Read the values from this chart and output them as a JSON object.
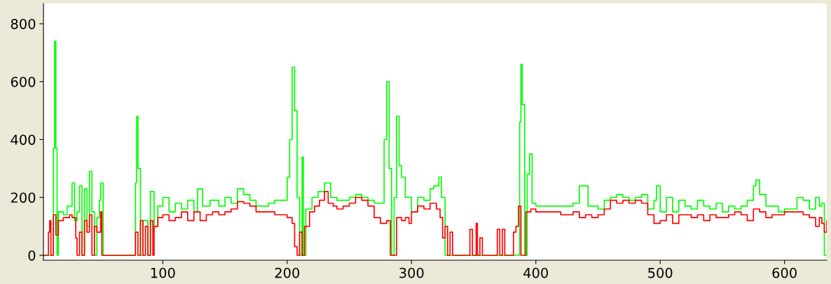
{
  "chart_data": {
    "type": "step",
    "xlim": [
      4,
      634
    ],
    "ylim": [
      -17,
      870
    ],
    "xticks": [
      100,
      200,
      300,
      400,
      500,
      600
    ],
    "yticks": [
      0,
      200,
      400,
      600,
      800
    ],
    "grid": false,
    "legend": false,
    "series": [
      {
        "color": "#00ff00",
        "x": [
          4,
          10,
          12,
          13,
          14,
          15,
          16,
          20,
          23,
          27,
          29,
          31,
          33,
          35,
          37,
          39,
          41,
          43,
          45,
          47,
          49,
          50,
          52,
          55,
          75,
          78,
          79,
          80,
          82,
          84,
          88,
          90,
          93,
          96,
          100,
          105,
          110,
          115,
          120,
          125,
          128,
          132,
          138,
          145,
          150,
          155,
          160,
          165,
          170,
          175,
          180,
          185,
          190,
          195,
          200,
          202,
          204,
          206,
          208,
          210,
          212,
          213,
          215,
          220,
          225,
          230,
          235,
          240,
          245,
          250,
          255,
          260,
          265,
          270,
          275,
          278,
          280,
          282,
          284,
          286,
          288,
          290,
          292,
          295,
          300,
          305,
          310,
          315,
          318,
          322,
          324,
          327,
          340,
          385,
          387,
          388,
          389,
          391,
          393,
          395,
          397,
          400,
          410,
          420,
          430,
          435,
          438,
          442,
          450,
          455,
          460,
          465,
          470,
          475,
          480,
          485,
          490,
          495,
          497,
          500,
          505,
          510,
          515,
          520,
          525,
          530,
          535,
          540,
          545,
          550,
          555,
          560,
          565,
          570,
          575,
          577,
          580,
          585,
          590,
          595,
          600,
          605,
          610,
          615,
          620,
          625,
          628,
          630,
          632,
          634
        ],
        "values": [
          0,
          0,
          370,
          740,
          370,
          0,
          150,
          140,
          170,
          250,
          120,
          150,
          240,
          0,
          230,
          100,
          290,
          150,
          0,
          130,
          190,
          250,
          0,
          0,
          0,
          250,
          480,
          300,
          0,
          120,
          0,
          220,
          100,
          170,
          200,
          150,
          180,
          160,
          190,
          150,
          230,
          170,
          190,
          170,
          200,
          180,
          230,
          210,
          190,
          170,
          170,
          180,
          190,
          190,
          270,
          400,
          650,
          500,
          200,
          0,
          340,
          0,
          160,
          200,
          220,
          250,
          200,
          190,
          190,
          200,
          210,
          200,
          190,
          180,
          180,
          400,
          600,
          300,
          0,
          200,
          480,
          310,
          270,
          200,
          150,
          200,
          190,
          230,
          240,
          270,
          200,
          0,
          0,
          0,
          460,
          660,
          520,
          0,
          280,
          350,
          180,
          170,
          170,
          170,
          180,
          240,
          240,
          170,
          160,
          190,
          200,
          210,
          200,
          190,
          200,
          210,
          160,
          190,
          240,
          150,
          200,
          150,
          190,
          170,
          160,
          190,
          170,
          160,
          180,
          150,
          170,
          160,
          170,
          190,
          240,
          260,
          210,
          170,
          170,
          150,
          160,
          160,
          200,
          190,
          160,
          200,
          170,
          180,
          0,
          0
        ]
      },
      {
        "color": "#ff0000",
        "x": [
          4,
          7,
          8,
          9,
          10,
          12,
          14,
          16,
          20,
          25,
          27,
          30,
          31,
          33,
          35,
          37,
          39,
          41,
          43,
          45,
          47,
          50,
          51,
          55,
          77,
          78,
          80,
          82,
          84,
          86,
          88,
          90,
          92,
          93,
          96,
          100,
          105,
          110,
          115,
          120,
          125,
          130,
          135,
          140,
          145,
          150,
          155,
          160,
          165,
          170,
          175,
          180,
          185,
          190,
          195,
          200,
          204,
          206,
          208,
          210,
          212,
          214,
          218,
          222,
          226,
          230,
          233,
          237,
          240,
          245,
          250,
          255,
          260,
          265,
          270,
          275,
          280,
          283,
          286,
          288,
          292,
          295,
          298,
          300,
          305,
          310,
          315,
          320,
          323,
          325,
          327,
          329,
          331,
          333,
          345,
          347,
          349,
          352,
          353,
          355,
          357,
          367,
          369,
          371,
          373,
          375,
          380,
          382,
          384,
          386,
          388,
          390,
          392,
          396,
          400,
          410,
          420,
          425,
          430,
          435,
          440,
          445,
          450,
          455,
          460,
          465,
          470,
          475,
          480,
          485,
          488,
          490,
          495,
          500,
          505,
          510,
          515,
          520,
          525,
          530,
          535,
          540,
          545,
          550,
          555,
          560,
          565,
          570,
          575,
          580,
          585,
          590,
          595,
          600,
          605,
          610,
          615,
          620,
          625,
          628,
          630,
          632,
          634
        ],
        "values": [
          0,
          0,
          80,
          120,
          0,
          140,
          70,
          120,
          130,
          140,
          130,
          60,
          0,
          80,
          0,
          120,
          80,
          140,
          0,
          100,
          80,
          150,
          0,
          0,
          0,
          80,
          0,
          120,
          0,
          100,
          0,
          120,
          0,
          100,
          130,
          140,
          120,
          130,
          150,
          120,
          150,
          120,
          140,
          150,
          140,
          150,
          160,
          185,
          180,
          170,
          150,
          150,
          150,
          140,
          140,
          130,
          110,
          30,
          0,
          80,
          0,
          100,
          150,
          170,
          190,
          220,
          180,
          170,
          160,
          170,
          180,
          200,
          190,
          170,
          130,
          110,
          120,
          0,
          0,
          130,
          120,
          130,
          110,
          150,
          170,
          160,
          180,
          160,
          130,
          60,
          100,
          0,
          80,
          0,
          0,
          90,
          0,
          110,
          0,
          60,
          0,
          0,
          90,
          0,
          90,
          0,
          0,
          80,
          100,
          170,
          0,
          0,
          150,
          160,
          150,
          150,
          140,
          140,
          150,
          130,
          140,
          130,
          140,
          160,
          190,
          180,
          190,
          180,
          190,
          180,
          180,
          140,
          110,
          120,
          140,
          110,
          140,
          140,
          130,
          140,
          120,
          140,
          130,
          130,
          140,
          150,
          140,
          120,
          160,
          150,
          130,
          140,
          140,
          150,
          150,
          150,
          140,
          130,
          100,
          130,
          110,
          80,
          120
        ]
      }
    ]
  }
}
